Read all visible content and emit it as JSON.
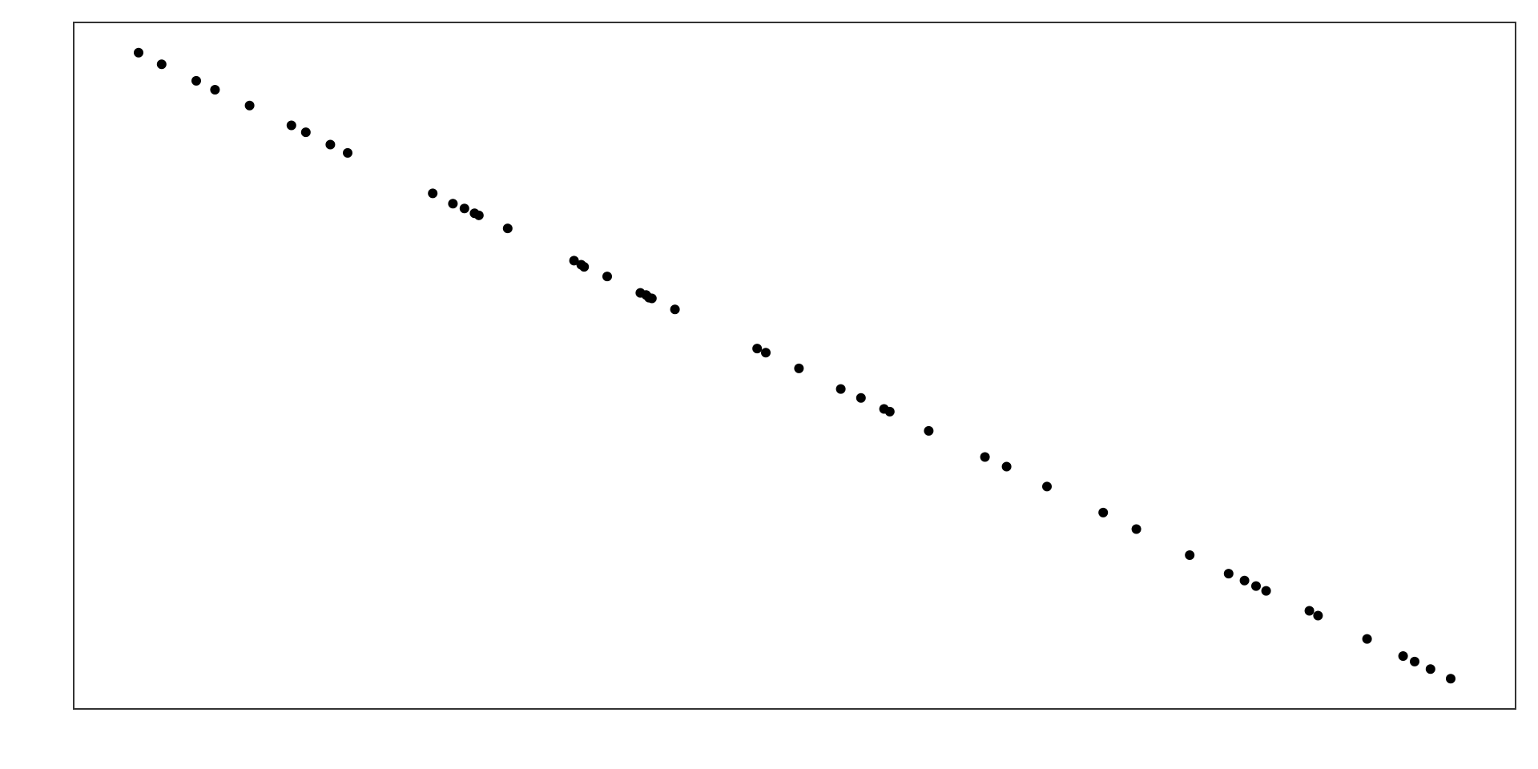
{
  "chart_data": {
    "type": "scatter",
    "color": "#000000",
    "x": [
      4.5,
      6.1,
      8.5,
      9.8,
      12.2,
      15.1,
      16.1,
      17.8,
      19.0,
      24.9,
      26.3,
      27.1,
      27.8,
      28.1,
      30.1,
      34.7,
      35.2,
      35.4,
      37.0,
      39.3,
      39.7,
      39.9,
      40.1,
      41.7,
      47.4,
      48.0,
      50.3,
      53.2,
      54.6,
      56.2,
      56.6,
      59.3,
      63.2,
      64.7,
      67.5,
      71.4,
      73.7,
      77.4,
      80.1,
      81.2,
      82.0,
      82.7,
      85.7,
      86.3,
      89.7,
      92.2,
      93.0,
      94.1,
      95.5
    ],
    "values": [
      95.6,
      93.9,
      91.5,
      90.2,
      87.9,
      85.0,
      84.0,
      82.2,
      81.0,
      75.1,
      73.6,
      72.9,
      72.2,
      71.9,
      70.0,
      65.3,
      64.7,
      64.4,
      63.0,
      60.6,
      60.3,
      59.9,
      59.8,
      58.2,
      52.5,
      51.9,
      49.6,
      46.6,
      45.3,
      43.7,
      43.3,
      40.5,
      36.7,
      35.3,
      32.4,
      28.6,
      26.2,
      22.4,
      19.7,
      18.7,
      17.9,
      17.2,
      14.3,
      13.6,
      10.2,
      7.7,
      6.9,
      5.8,
      4.4
    ],
    "xlim": [
      0,
      100
    ],
    "ylim": [
      0,
      100
    ]
  }
}
